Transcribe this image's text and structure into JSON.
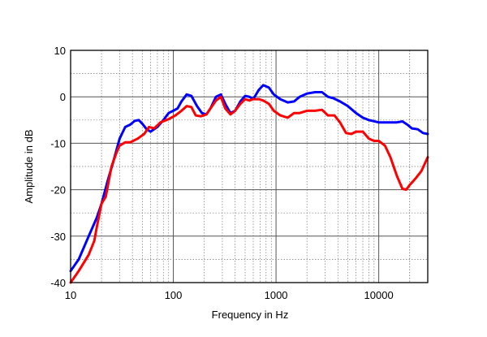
{
  "chart_data": {
    "type": "line",
    "title": "",
    "xlabel": "Frequency in Hz",
    "ylabel": "Amplitude in dB",
    "x_scale": "log",
    "xlim": [
      10,
      30000
    ],
    "ylim": [
      -40,
      10
    ],
    "grid": true,
    "x_ticks": [
      {
        "value": 10,
        "label": "10"
      },
      {
        "value": 100,
        "label": "100"
      },
      {
        "value": 1000,
        "label": "1000"
      },
      {
        "value": 10000,
        "label": "10000"
      }
    ],
    "y_ticks": [
      {
        "value": 10,
        "label": "10"
      },
      {
        "value": 0,
        "label": "0"
      },
      {
        "value": -10,
        "label": "-10"
      },
      {
        "value": -20,
        "label": "-20"
      },
      {
        "value": -30,
        "label": "-30"
      },
      {
        "value": -40,
        "label": "-40"
      }
    ],
    "series": [
      {
        "color": "#0000ff",
        "points": [
          [
            10,
            -37.5
          ],
          [
            12,
            -35
          ],
          [
            15,
            -30
          ],
          [
            18,
            -26
          ],
          [
            20,
            -23
          ],
          [
            23,
            -18
          ],
          [
            26,
            -14
          ],
          [
            30,
            -9
          ],
          [
            34,
            -6.5
          ],
          [
            38,
            -6
          ],
          [
            42,
            -5.2
          ],
          [
            46,
            -5
          ],
          [
            50,
            -5.8
          ],
          [
            55,
            -7
          ],
          [
            60,
            -7.5
          ],
          [
            70,
            -6.5
          ],
          [
            80,
            -5
          ],
          [
            90,
            -3.5
          ],
          [
            100,
            -3
          ],
          [
            110,
            -2.5
          ],
          [
            120,
            -1
          ],
          [
            135,
            0.5
          ],
          [
            150,
            0.2
          ],
          [
            170,
            -2
          ],
          [
            190,
            -3.5
          ],
          [
            210,
            -3.8
          ],
          [
            230,
            -2.5
          ],
          [
            260,
            0
          ],
          [
            290,
            0.5
          ],
          [
            320,
            -1.5
          ],
          [
            360,
            -3.5
          ],
          [
            400,
            -3
          ],
          [
            450,
            -1
          ],
          [
            500,
            0.2
          ],
          [
            550,
            0
          ],
          [
            600,
            -0.5
          ],
          [
            680,
            1.5
          ],
          [
            750,
            2.5
          ],
          [
            850,
            2
          ],
          [
            950,
            0.5
          ],
          [
            1100,
            -0.5
          ],
          [
            1300,
            -1.2
          ],
          [
            1500,
            -1
          ],
          [
            1700,
            0
          ],
          [
            2000,
            0.7
          ],
          [
            2400,
            1
          ],
          [
            2800,
            1
          ],
          [
            3200,
            0
          ],
          [
            3600,
            -0.3
          ],
          [
            4200,
            -1
          ],
          [
            5000,
            -2
          ],
          [
            6000,
            -3.5
          ],
          [
            7000,
            -4.5
          ],
          [
            8000,
            -5
          ],
          [
            10000,
            -5.5
          ],
          [
            12000,
            -5.5
          ],
          [
            15000,
            -5.5
          ],
          [
            17000,
            -5.3
          ],
          [
            19000,
            -6
          ],
          [
            21000,
            -6.8
          ],
          [
            24000,
            -7
          ],
          [
            27000,
            -7.8
          ],
          [
            30000,
            -8
          ]
        ]
      },
      {
        "color": "#ff0000",
        "points": [
          [
            10,
            -40
          ],
          [
            12,
            -37.5
          ],
          [
            15,
            -34
          ],
          [
            17,
            -31
          ],
          [
            18,
            -28
          ],
          [
            20,
            -23
          ],
          [
            22,
            -21.5
          ],
          [
            25,
            -15
          ],
          [
            28,
            -12
          ],
          [
            30,
            -10.5
          ],
          [
            34,
            -9.8
          ],
          [
            38,
            -9.8
          ],
          [
            45,
            -9
          ],
          [
            52,
            -8
          ],
          [
            58,
            -6.5
          ],
          [
            65,
            -6.8
          ],
          [
            75,
            -5.5
          ],
          [
            90,
            -4.8
          ],
          [
            105,
            -4
          ],
          [
            120,
            -3
          ],
          [
            135,
            -2
          ],
          [
            150,
            -2.2
          ],
          [
            165,
            -4
          ],
          [
            185,
            -4.2
          ],
          [
            210,
            -3.8
          ],
          [
            235,
            -2.2
          ],
          [
            260,
            -0.8
          ],
          [
            290,
            0
          ],
          [
            320,
            -2.5
          ],
          [
            360,
            -3.8
          ],
          [
            400,
            -3
          ],
          [
            450,
            -1.5
          ],
          [
            500,
            -0.5
          ],
          [
            550,
            -0.8
          ],
          [
            600,
            -0.5
          ],
          [
            680,
            -0.5
          ],
          [
            750,
            -0.8
          ],
          [
            850,
            -1.5
          ],
          [
            950,
            -3
          ],
          [
            1100,
            -4
          ],
          [
            1300,
            -4.5
          ],
          [
            1500,
            -3.5
          ],
          [
            1700,
            -3.5
          ],
          [
            2000,
            -3
          ],
          [
            2400,
            -3
          ],
          [
            2800,
            -2.8
          ],
          [
            3200,
            -4
          ],
          [
            3700,
            -4
          ],
          [
            4200,
            -5.5
          ],
          [
            4800,
            -7.8
          ],
          [
            5400,
            -8
          ],
          [
            6000,
            -7.5
          ],
          [
            7000,
            -7.5
          ],
          [
            8000,
            -9
          ],
          [
            9000,
            -9.5
          ],
          [
            10000,
            -9.5
          ],
          [
            11500,
            -10.5
          ],
          [
            13000,
            -13
          ],
          [
            15000,
            -17
          ],
          [
            17000,
            -19.8
          ],
          [
            18500,
            -20
          ],
          [
            20000,
            -19
          ],
          [
            23000,
            -17.5
          ],
          [
            26000,
            -16
          ],
          [
            30000,
            -13
          ]
        ]
      }
    ]
  }
}
